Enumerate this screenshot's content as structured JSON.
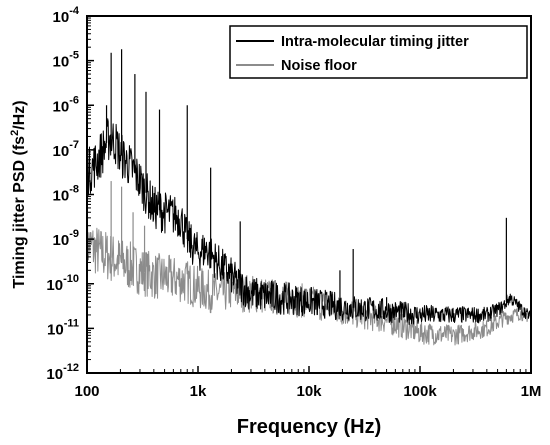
{
  "chart_data": {
    "type": "line",
    "xscale": "log",
    "yscale": "log",
    "xlim": [
      100,
      1000000
    ],
    "ylim": [
      1e-12,
      0.0001
    ],
    "xlabel": "Frequency (Hz)",
    "ylabel_main": "Timing jitter PSD (fs",
    "ylabel_sup": "2",
    "ylabel_end": "/Hz)",
    "x_ticks": [
      {
        "value": 100,
        "label": "100"
      },
      {
        "value": 1000,
        "label": "1k"
      },
      {
        "value": 10000,
        "label": "10k"
      },
      {
        "value": 100000,
        "label": "100k"
      },
      {
        "value": 1000000,
        "label": "1M"
      }
    ],
    "y_ticks": [
      {
        "value": 1e-12,
        "base": "10",
        "exp": "-12"
      },
      {
        "value": 1e-11,
        "base": "10",
        "exp": "-11"
      },
      {
        "value": 1e-10,
        "base": "10",
        "exp": "-10"
      },
      {
        "value": 1e-09,
        "base": "10",
        "exp": "-9"
      },
      {
        "value": 1e-08,
        "base": "10",
        "exp": "-8"
      },
      {
        "value": 1e-07,
        "base": "10",
        "exp": "-7"
      },
      {
        "value": 1e-06,
        "base": "10",
        "exp": "-6"
      },
      {
        "value": 1e-05,
        "base": "10",
        "exp": "-5"
      },
      {
        "value": 0.0001,
        "base": "10",
        "exp": "-4"
      }
    ],
    "legend_position": "top-right",
    "grid": false,
    "series": [
      {
        "name": "Intra-molecular timing jitter",
        "color": "#000000",
        "x": [
          100,
          120,
          140,
          160,
          180,
          200,
          250,
          300,
          400,
          500,
          700,
          800,
          1000,
          1200,
          1500,
          2000,
          2300,
          3000,
          5000,
          10000,
          20000,
          50000,
          100000,
          200000,
          400000,
          550000,
          650000,
          700000,
          850000,
          1000000
        ],
        "y": [
          3e-08,
          5e-08,
          1e-07,
          2e-07,
          1.5e-07,
          8e-08,
          4e-08,
          2e-08,
          5e-09,
          4e-09,
          3e-09,
          1e-09,
          5e-10,
          6e-10,
          3e-10,
          1.5e-10,
          1e-10,
          6e-11,
          5e-11,
          4e-11,
          3e-11,
          2.5e-11,
          2e-11,
          2e-11,
          2e-11,
          3e-11,
          5e-11,
          4e-11,
          2.5e-11,
          1.8e-11
        ],
        "spikes": [
          {
            "x": 150,
            "y": 1e-06
          },
          {
            "x": 165,
            "y": 1.5e-05
          },
          {
            "x": 205,
            "y": 1.8e-05
          },
          {
            "x": 270,
            "y": 5e-06
          },
          {
            "x": 340,
            "y": 2e-06
          },
          {
            "x": 450,
            "y": 8e-07
          },
          {
            "x": 800,
            "y": 1e-06
          },
          {
            "x": 1300,
            "y": 4e-08
          },
          {
            "x": 2400,
            "y": 2.5e-09
          },
          {
            "x": 19000,
            "y": 2e-10
          },
          {
            "x": 25000,
            "y": 6e-10
          },
          {
            "x": 50000,
            "y": 5e-11
          },
          {
            "x": 600000,
            "y": 3e-09
          }
        ]
      },
      {
        "name": "Noise floor",
        "color": "#8c8c8c",
        "x": [
          100,
          130,
          160,
          200,
          300,
          400,
          600,
          800,
          1000,
          1500,
          2000,
          3000,
          5000,
          10000,
          20000,
          50000,
          100000,
          200000,
          400000,
          600000,
          800000,
          1000000
        ],
        "y": [
          8e-10,
          5e-10,
          4e-10,
          3e-10,
          2e-10,
          1.5e-10,
          1.3e-10,
          1.1e-10,
          8e-11,
          6e-11,
          7e-11,
          6e-11,
          5e-11,
          4e-11,
          2.5e-11,
          1.5e-11,
          8e-12,
          7e-12,
          1e-11,
          1.8e-11,
          2.2e-11,
          1.8e-11
        ],
        "spikes": [
          {
            "x": 165,
            "y": 2e-08
          },
          {
            "x": 205,
            "y": 1.5e-08
          },
          {
            "x": 260,
            "y": 4e-09
          },
          {
            "x": 330,
            "y": 2e-09
          }
        ]
      }
    ]
  }
}
